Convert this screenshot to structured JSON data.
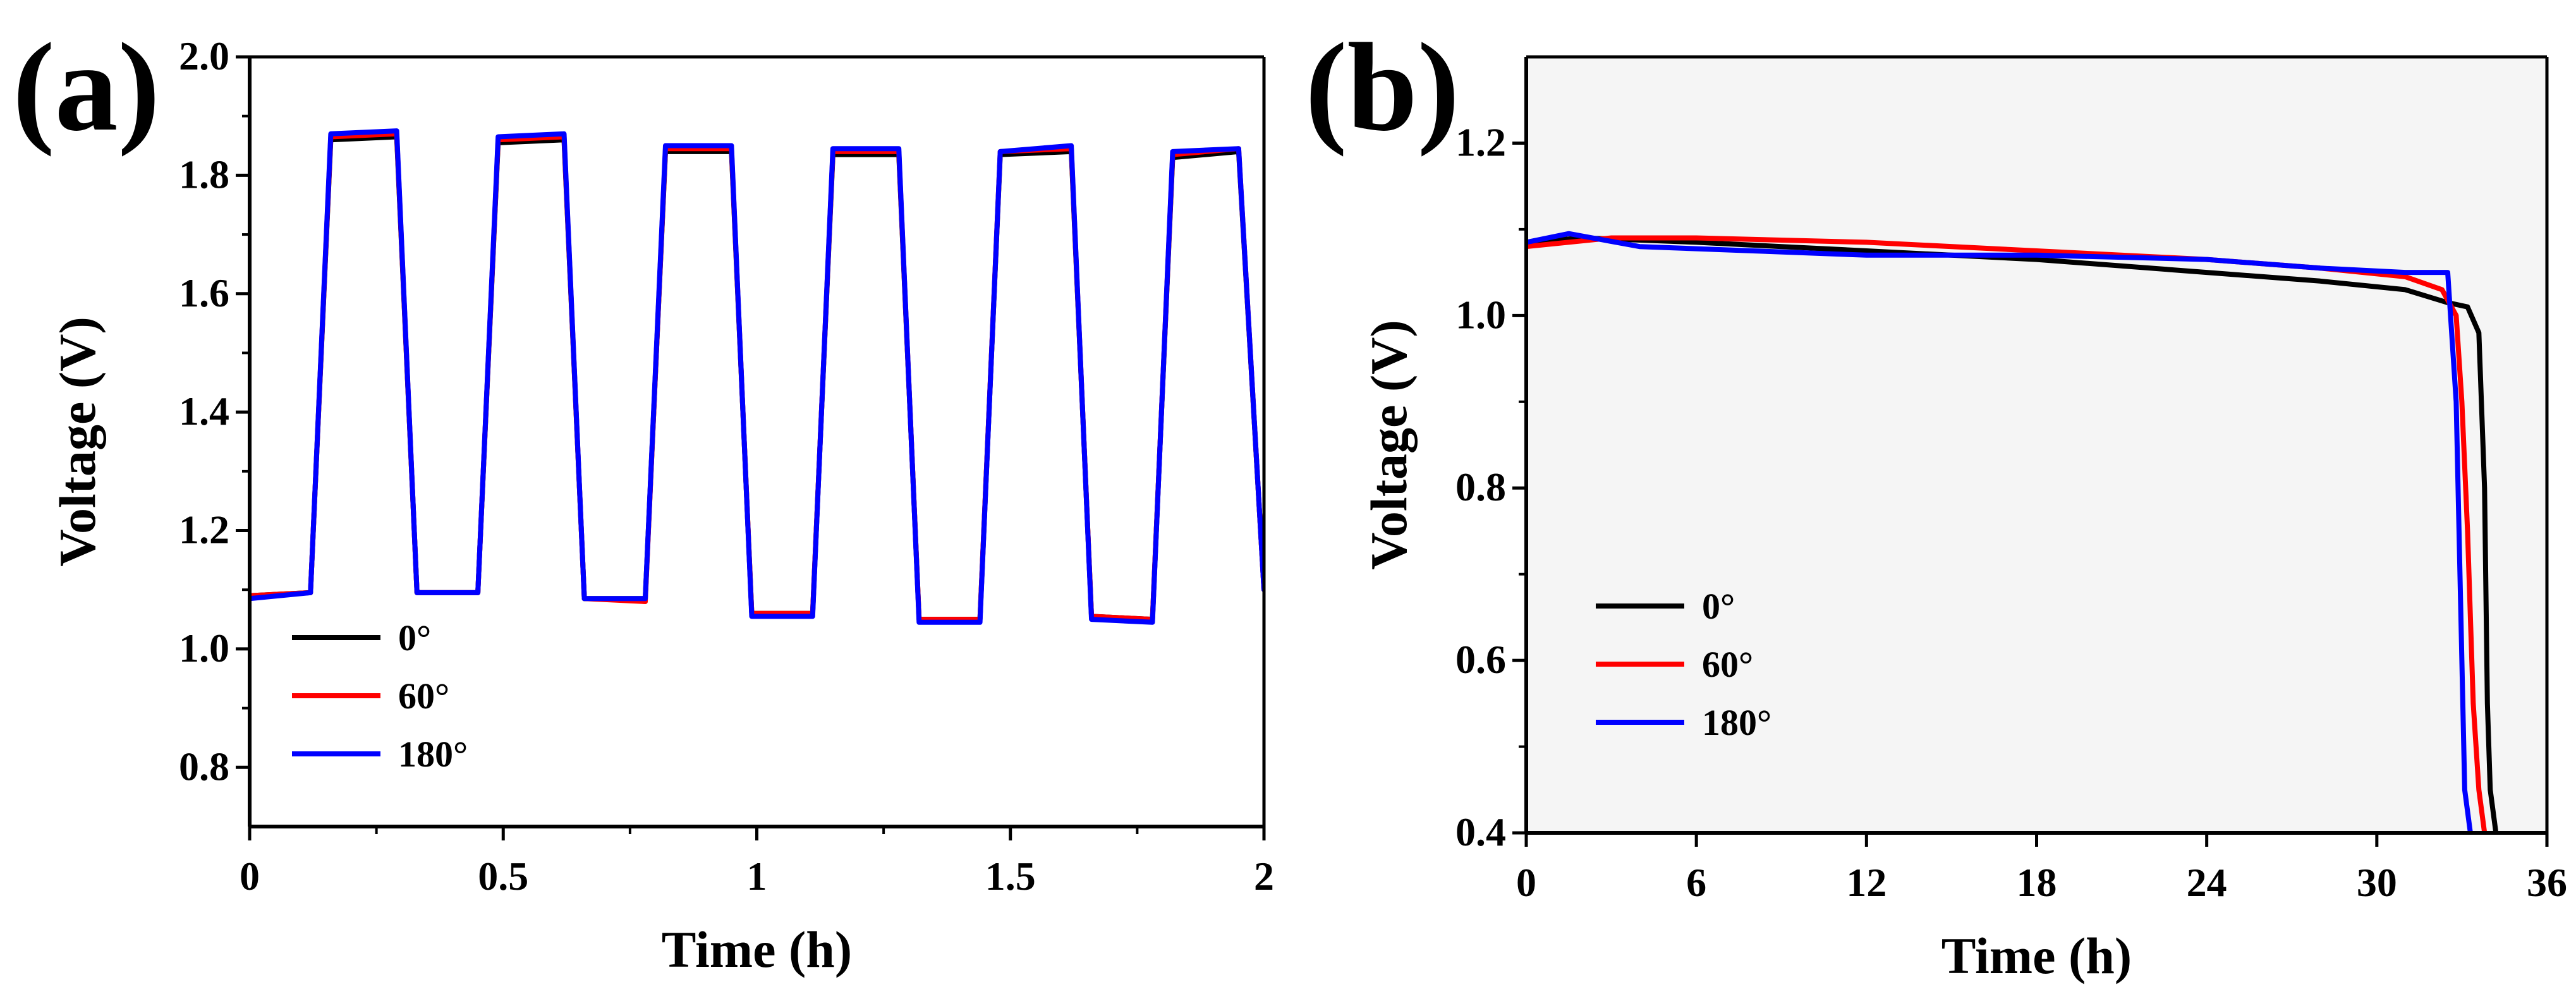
{
  "chart_data": [
    {
      "panel": "(a)",
      "type": "line",
      "xlabel": "Time (h)",
      "ylabel": "Voltage (V)",
      "xlim": [
        0,
        2
      ],
      "ylim": [
        0.7,
        2.0
      ],
      "xticks": [
        0,
        0.5,
        1,
        1.5,
        2
      ],
      "xtick_labels": [
        "0",
        "0.5",
        "1",
        "1.5",
        "2"
      ],
      "yticks": [
        0.8,
        1.0,
        1.2,
        1.4,
        1.6,
        1.8,
        2.0
      ],
      "ytick_labels": [
        "0.8",
        "1.0",
        "1.2",
        "1.4",
        "1.6",
        "1.8",
        "2.0"
      ],
      "legend_position": "bottom-left",
      "series": [
        {
          "name": "0°",
          "color": "#000000",
          "x": [
            0,
            0.12,
            0.16,
            0.29,
            0.33,
            0.45,
            0.49,
            0.62,
            0.66,
            0.78,
            0.82,
            0.95,
            0.99,
            1.11,
            1.15,
            1.28,
            1.32,
            1.44,
            1.48,
            1.62,
            1.66,
            1.78,
            1.82,
            1.95,
            2.0
          ],
          "y": [
            1.09,
            1.095,
            1.86,
            1.865,
            1.095,
            1.095,
            1.855,
            1.86,
            1.085,
            1.085,
            1.84,
            1.84,
            1.06,
            1.06,
            1.835,
            1.835,
            1.05,
            1.05,
            1.835,
            1.84,
            1.055,
            1.05,
            1.83,
            1.84,
            1.1
          ]
        },
        {
          "name": "60°",
          "color": "#ff0000",
          "x": [
            0,
            0.12,
            0.16,
            0.29,
            0.33,
            0.45,
            0.49,
            0.62,
            0.66,
            0.78,
            0.82,
            0.95,
            0.99,
            1.11,
            1.15,
            1.28,
            1.32,
            1.44,
            1.48,
            1.62,
            1.66,
            1.78,
            1.82,
            1.95,
            2.0
          ],
          "y": [
            1.09,
            1.095,
            1.865,
            1.87,
            1.095,
            1.095,
            1.86,
            1.865,
            1.085,
            1.08,
            1.845,
            1.845,
            1.06,
            1.06,
            1.84,
            1.84,
            1.05,
            1.05,
            1.84,
            1.845,
            1.055,
            1.05,
            1.835,
            1.845,
            1.1
          ]
        },
        {
          "name": "180°",
          "color": "#0000ff",
          "x": [
            0,
            0.12,
            0.16,
            0.29,
            0.33,
            0.45,
            0.49,
            0.62,
            0.66,
            0.78,
            0.82,
            0.95,
            0.99,
            1.11,
            1.15,
            1.28,
            1.32,
            1.44,
            1.48,
            1.62,
            1.66,
            1.78,
            1.82,
            1.95,
            2.0
          ],
          "y": [
            1.085,
            1.095,
            1.87,
            1.875,
            1.095,
            1.095,
            1.865,
            1.87,
            1.085,
            1.085,
            1.85,
            1.85,
            1.055,
            1.055,
            1.845,
            1.845,
            1.045,
            1.045,
            1.84,
            1.85,
            1.05,
            1.045,
            1.84,
            1.845,
            1.1
          ]
        }
      ]
    },
    {
      "panel": "(b)",
      "type": "line",
      "xlabel": "Time (h)",
      "ylabel": "Voltage (V)",
      "xlim": [
        0,
        36
      ],
      "ylim": [
        0.4,
        1.3
      ],
      "xticks": [
        0,
        6,
        12,
        18,
        24,
        30,
        36
      ],
      "xtick_labels": [
        "0",
        "6",
        "12",
        "18",
        "24",
        "30",
        "36"
      ],
      "yticks": [
        0.4,
        0.6,
        0.8,
        1.0,
        1.2
      ],
      "ytick_labels": [
        "0.4",
        "0.6",
        "0.8",
        "1.0",
        "1.2"
      ],
      "legend_position": "lower-left",
      "series": [
        {
          "name": "0°",
          "color": "#000000",
          "x": [
            0,
            2,
            6,
            12,
            18,
            24,
            28,
            31,
            32.5,
            33.2,
            33.6,
            33.8,
            33.9,
            34.0,
            34.2
          ],
          "y": [
            1.085,
            1.09,
            1.085,
            1.075,
            1.065,
            1.05,
            1.04,
            1.03,
            1.015,
            1.01,
            0.98,
            0.8,
            0.55,
            0.45,
            0.4
          ]
        },
        {
          "name": "60°",
          "color": "#ff0000",
          "x": [
            0,
            3,
            6,
            12,
            18,
            24,
            28,
            31,
            32.3,
            32.8,
            33.0,
            33.2,
            33.4,
            33.6,
            33.8
          ],
          "y": [
            1.08,
            1.09,
            1.09,
            1.085,
            1.075,
            1.065,
            1.055,
            1.045,
            1.03,
            1.0,
            0.9,
            0.75,
            0.55,
            0.45,
            0.4
          ]
        },
        {
          "name": "180°",
          "color": "#0000ff",
          "x": [
            0,
            1.5,
            4,
            8,
            12,
            18,
            24,
            28,
            31,
            32.5,
            32.8,
            33.0,
            33.1,
            33.3
          ],
          "y": [
            1.085,
            1.095,
            1.08,
            1.075,
            1.07,
            1.07,
            1.065,
            1.055,
            1.05,
            1.05,
            0.9,
            0.6,
            0.45,
            0.4
          ]
        }
      ]
    }
  ]
}
